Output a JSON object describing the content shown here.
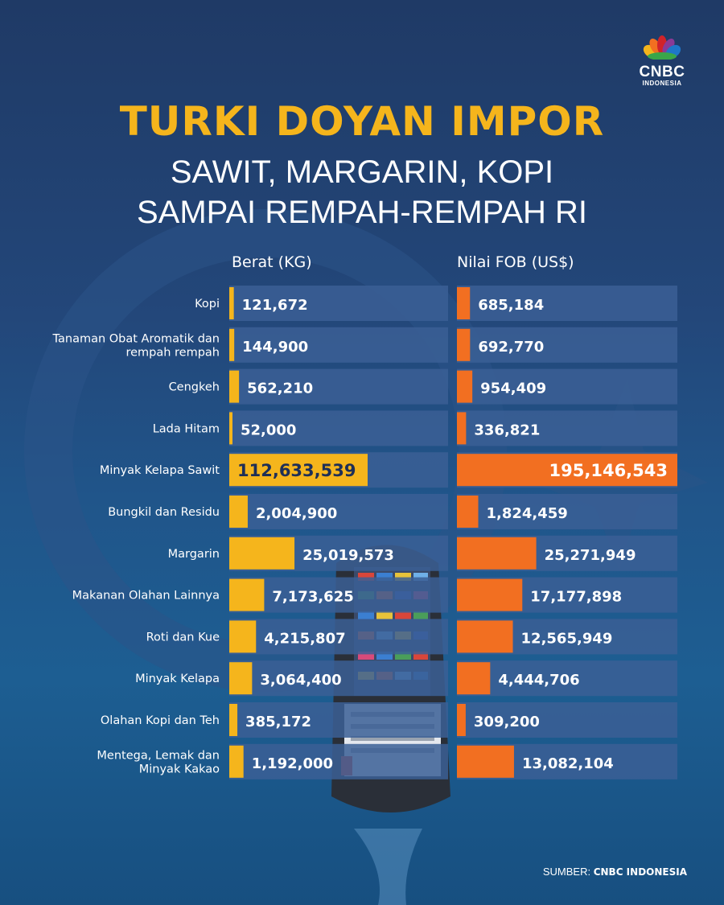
{
  "brand": {
    "word": "CNBC",
    "sub": "INDONESIA"
  },
  "title": {
    "line1": "TURKI DOYAN IMPOR",
    "line2": "SAWIT, MARGARIN, KOPI",
    "line3": "SAMPAI REMPAH-REMPAH RI"
  },
  "source": {
    "prefix": "SUMBER:",
    "name": "CNBC INDONESIA"
  },
  "colors": {
    "berat": "#f5b51c",
    "fob": "#f26f21",
    "row_bg": "#3b5f95"
  },
  "chart_data": {
    "type": "bar",
    "orientation": "horizontal",
    "categories": [
      "Kopi",
      "Tanaman Obat Aromatik dan rempah rempah",
      "Cengkeh",
      "Lada Hitam",
      "Minyak Kelapa Sawit",
      "Bungkil dan Residu",
      "Margarin",
      "Makanan Olahan Lainnya",
      "Roti dan Kue",
      "Minyak Kelapa",
      "Olahan Kopi dan Teh",
      "Mentega, Lemak dan Minyak Kakao"
    ],
    "category_lines": [
      [
        "Kopi"
      ],
      [
        "Tanaman Obat Aromatik dan",
        "rempah rempah"
      ],
      [
        "Cengkeh"
      ],
      [
        "Lada Hitam"
      ],
      [
        "Minyak Kelapa Sawit"
      ],
      [
        "Bungkil dan Residu"
      ],
      [
        "Margarin"
      ],
      [
        "Makanan Olahan Lainnya"
      ],
      [
        "Roti dan Kue"
      ],
      [
        "Minyak Kelapa"
      ],
      [
        "Olahan Kopi dan Teh"
      ],
      [
        "Mentega, Lemak dan",
        "Minyak Kakao"
      ]
    ],
    "series": [
      {
        "name": "Berat (KG)",
        "values": [
          121672,
          144900,
          562210,
          52000,
          112633539,
          2004900,
          25019573,
          7173625,
          4215807,
          3064400,
          385172,
          1192000
        ],
        "labels": [
          "121,672",
          "144,900",
          "562,210",
          "52,000",
          "112,633,539",
          "2,004,900",
          "25,019,573",
          "7,173,625",
          "4,215,807",
          "3,064,400",
          "385,172",
          "1,192,000"
        ]
      },
      {
        "name": "Nilai FOB (US$)",
        "values": [
          685184,
          692770,
          954409,
          336821,
          195146543,
          1824459,
          25271949,
          17177898,
          12565949,
          4444706,
          309200,
          13082104
        ],
        "labels": [
          "685,184",
          "692,770",
          "954,409",
          "336,821",
          "195,146,543",
          "1,824,459",
          "25,271,949",
          "17,177,898",
          "12,565,949",
          "4,444,706",
          "309,200",
          "13,082,104"
        ]
      }
    ]
  }
}
